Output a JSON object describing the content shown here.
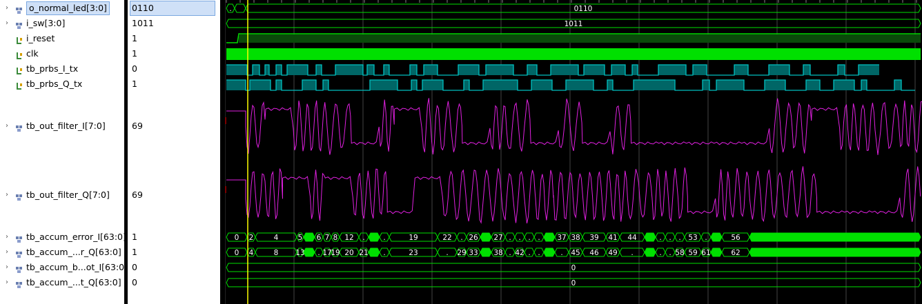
{
  "signals": [
    {
      "name": "o_normal_led[3:0]",
      "value": "0110",
      "kind": "bus",
      "icon": "bus-output-icon",
      "selected": true
    },
    {
      "name": "i_sw[3:0]",
      "value": "1011",
      "kind": "bus",
      "icon": "bus-input-icon"
    },
    {
      "name": "i_reset",
      "value": "1",
      "kind": "bit",
      "icon": "bit-input-icon"
    },
    {
      "name": "clk",
      "value": "1",
      "kind": "bit",
      "icon": "bit-input-icon"
    },
    {
      "name": "tb_prbs_I_tx",
      "value": "0",
      "kind": "bit",
      "icon": "bit-wire-icon"
    },
    {
      "name": "tb_prbs_Q_tx",
      "value": "1",
      "kind": "bit",
      "icon": "bit-wire-icon"
    },
    {
      "name": "tb_out_filter_I[7:0]",
      "value": "69",
      "kind": "bus",
      "icon": "bus-wire-icon"
    },
    {
      "name": "tb_out_filter_Q[7:0]",
      "value": "69",
      "kind": "bus",
      "icon": "bus-wire-icon"
    },
    {
      "name": "tb_accum_error_I[63:0]",
      "value": "1",
      "kind": "bus",
      "icon": "bus-wire-icon"
    },
    {
      "name": "tb_accum_...r_Q[63:0]",
      "value": "1",
      "kind": "bus",
      "icon": "bus-wire-icon"
    },
    {
      "name": "tb_accum_b...ot_I[63:0]",
      "value": "0",
      "kind": "bus",
      "icon": "bus-wire-icon"
    },
    {
      "name": "tb_accum_...t_Q[63:0]",
      "value": "0",
      "kind": "bus",
      "icon": "bus-wire-icon"
    }
  ],
  "waves": {
    "o_normal_led": {
      "initial": ".",
      "value": "0110"
    },
    "i_sw": {
      "value": "1011"
    },
    "accum_error_I_labels": [
      "0",
      "2",
      "4",
      "5",
      "6",
      "7",
      "8",
      "12",
      ".",
      ".",
      "19",
      "22",
      ".",
      "26",
      "27",
      ".",
      ".",
      ".",
      ".",
      "37",
      "38",
      "39",
      "41",
      "44",
      ".",
      ".",
      ".",
      "53",
      ".",
      "56"
    ],
    "accum_error_Q_labels": [
      "0",
      "4",
      "8",
      "13",
      ".",
      "17",
      "19",
      "20",
      "21",
      ".",
      "23",
      ".",
      "29",
      "33",
      "38",
      ".",
      "42",
      ".",
      ".",
      ".",
      "45",
      "46",
      "49",
      ".",
      ".",
      ".",
      "58",
      "59",
      "61",
      "62"
    ],
    "accum_bit_I_value": "0",
    "accum_bit_Q_value": "0"
  },
  "colors": {
    "bus": "#00e000",
    "bit": "#00e000",
    "prbs": "#00c0c0",
    "analog": "#e020e0",
    "cursor": "#ffff00",
    "grid": "#444444"
  }
}
